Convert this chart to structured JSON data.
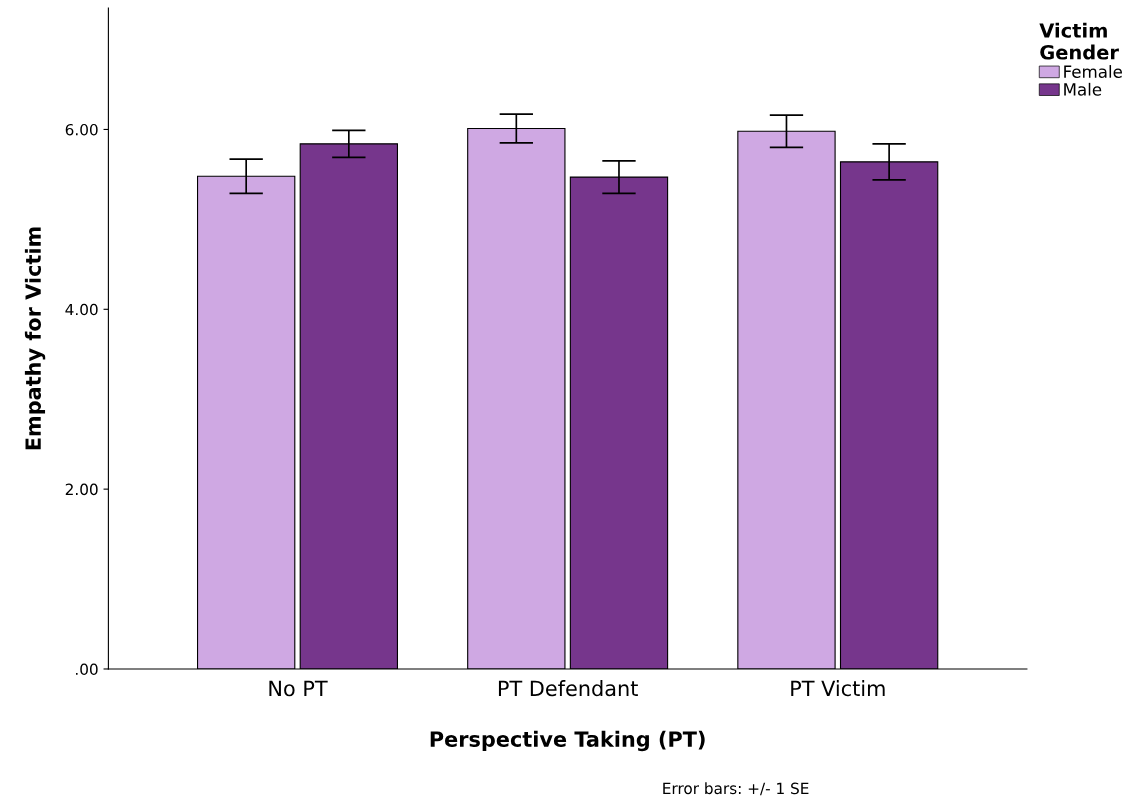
{
  "chart_data": {
    "type": "bar",
    "xlabel": "Perspective Taking (PT)",
    "ylabel": "Empathy for Victim",
    "legend_title": "Victim\nGender",
    "categories": [
      "No PT",
      "PT Defendant",
      "PT Victim"
    ],
    "series": [
      {
        "name": "Female",
        "color": "#cfa8e3",
        "values": [
          5.48,
          6.01,
          5.98
        ],
        "errors": [
          0.19,
          0.16,
          0.18
        ]
      },
      {
        "name": "Male",
        "color": "#76368c",
        "values": [
          5.84,
          5.47,
          5.64
        ],
        "errors": [
          0.15,
          0.18,
          0.2
        ]
      }
    ],
    "ylim": [
      0,
      7.35
    ],
    "yticks": [
      {
        "value": 0,
        "label": ".00"
      },
      {
        "value": 2,
        "label": "2.00"
      },
      {
        "value": 4,
        "label": "4.00"
      },
      {
        "value": 6,
        "label": "6.00"
      }
    ],
    "grid": false,
    "legend": "top right",
    "annotations": [
      "Error bars: +/- 1 SE"
    ]
  }
}
